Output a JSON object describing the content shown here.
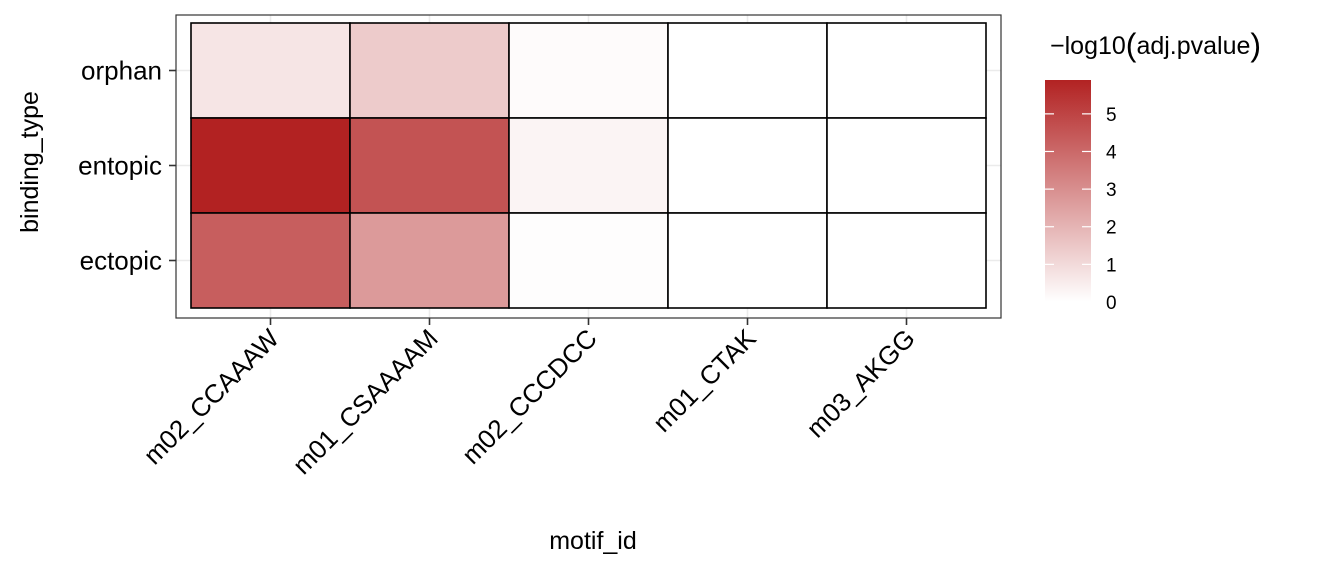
{
  "chart_data": {
    "type": "heatmap",
    "title": "",
    "xlabel": "motif_id",
    "ylabel": "binding_type",
    "x_categories": [
      "m02_CCAAAW",
      "m01_CSAAAAM",
      "m02_CCCDCC",
      "m01_CTAK",
      "m03_AKGG"
    ],
    "y_categories": [
      "orphan",
      "entopic",
      "ectopic"
    ],
    "values": [
      [
        0.7,
        1.4,
        0.1,
        0.0,
        0.0
      ],
      [
        5.9,
        4.6,
        0.3,
        0.0,
        0.0
      ],
      [
        4.3,
        2.7,
        0.05,
        0.0,
        0.0
      ]
    ],
    "legend": {
      "title_prefix": "−",
      "title_func": "log10",
      "title_arg": "adj.pvalue",
      "ticks": [
        "0",
        "1",
        "2",
        "3",
        "4",
        "5"
      ],
      "tick_values": [
        0,
        1,
        2,
        3,
        4,
        5
      ],
      "range": [
        0,
        5.9
      ],
      "color_low": "#ffffff",
      "color_high": "#b22222",
      "placement": "right"
    },
    "panel_border": "#333333",
    "tile_border": "#000000",
    "grid": true
  }
}
